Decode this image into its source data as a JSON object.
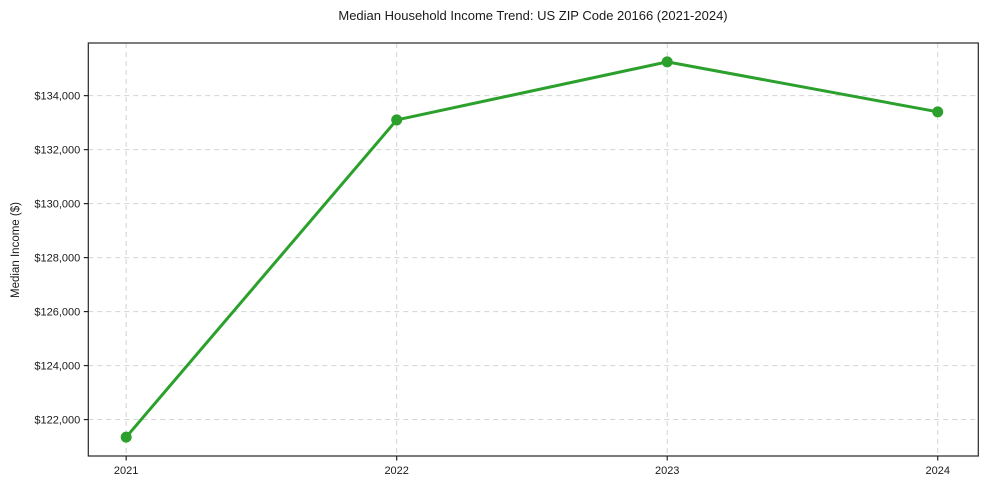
{
  "chart_data": {
    "type": "line",
    "title": "Median Household Income Trend: US ZIP Code 20166 (2021-2024)",
    "xlabel": "",
    "ylabel": "Median Income ($)",
    "x": [
      2021,
      2022,
      2023,
      2024
    ],
    "series": [
      {
        "name": "Median household income",
        "values": [
          121350,
          133100,
          135250,
          133400
        ]
      }
    ],
    "x_tick_labels": [
      "2021",
      "2022",
      "2023",
      "2024"
    ],
    "y_ticks": [
      122000,
      124000,
      126000,
      128000,
      130000,
      132000,
      134000
    ],
    "y_tick_labels": [
      "$122,000",
      "$124,000",
      "$126,000",
      "$128,000",
      "$130,000",
      "$132,000",
      "$134,000"
    ],
    "xlim": [
      2020.86,
      2024.15
    ],
    "ylim": [
      120650,
      135950
    ],
    "grid": true,
    "grid_style": "dashed",
    "legend": "none",
    "colors": {
      "line": "#2ca02c",
      "marker": "#2ca02c",
      "grid": "#d4d4d4",
      "spine": "#262626",
      "text": "#1a1a1a",
      "background": "#ffffff"
    }
  }
}
